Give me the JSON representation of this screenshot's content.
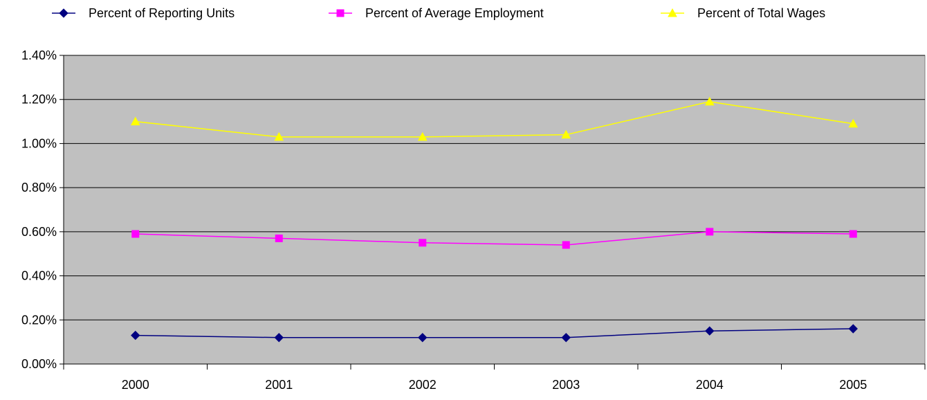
{
  "chart_data": {
    "type": "line",
    "categories": [
      "2000",
      "2001",
      "2002",
      "2003",
      "2004",
      "2005"
    ],
    "ylim": [
      0,
      1.4
    ],
    "yticks": [
      "0.00%",
      "0.20%",
      "0.40%",
      "0.60%",
      "0.80%",
      "1.00%",
      "1.20%",
      "1.40%"
    ],
    "yticks_values": [
      0,
      0.2,
      0.4,
      0.6,
      0.8,
      1.0,
      1.2,
      1.4
    ],
    "grid": true,
    "plot_background": "#c0c0c0",
    "legend_position": "top",
    "series": [
      {
        "name": "Percent of Reporting Units",
        "color": "#000080",
        "marker": "diamond",
        "values": [
          0.13,
          0.12,
          0.12,
          0.12,
          0.15,
          0.16
        ]
      },
      {
        "name": "Percent of Average Employment",
        "color": "#ff00ff",
        "marker": "square",
        "values": [
          0.59,
          0.57,
          0.55,
          0.54,
          0.6,
          0.59
        ]
      },
      {
        "name": "Percent of Total Wages",
        "color": "#ffff00",
        "marker": "triangle",
        "values": [
          1.1,
          1.03,
          1.03,
          1.04,
          1.19,
          1.09
        ]
      }
    ]
  }
}
